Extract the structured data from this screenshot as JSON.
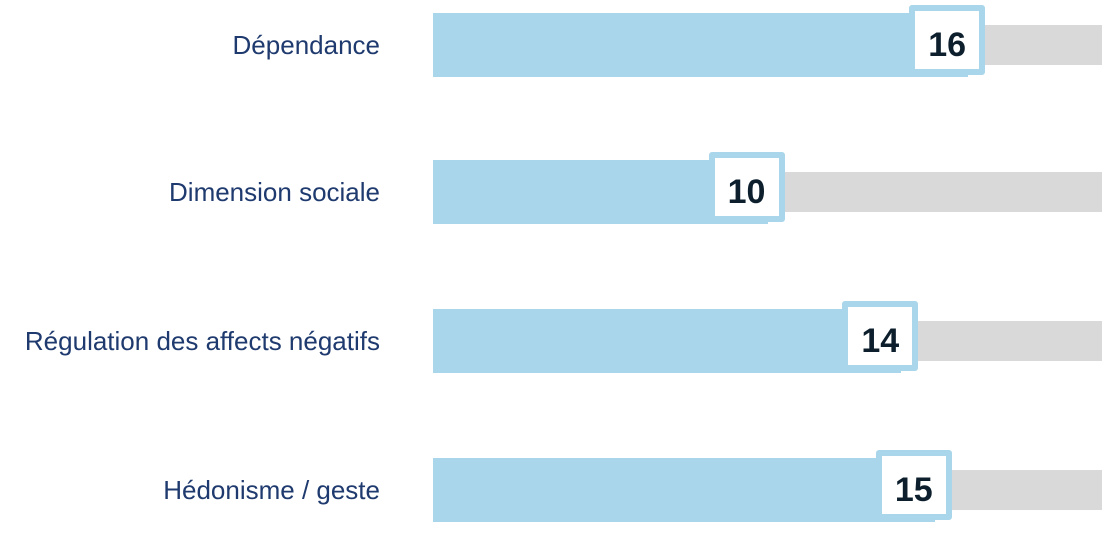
{
  "chart_data": {
    "type": "bar",
    "orientation": "horizontal",
    "categories": [
      "Dépendance",
      "Dimension sociale",
      "Régulation des affects négatifs",
      "Hédonisme / geste"
    ],
    "values": [
      16,
      10,
      14,
      15
    ],
    "color": "#a9d6eb",
    "track_color": "#d9d9d9",
    "xlim": [
      0,
      20
    ]
  }
}
